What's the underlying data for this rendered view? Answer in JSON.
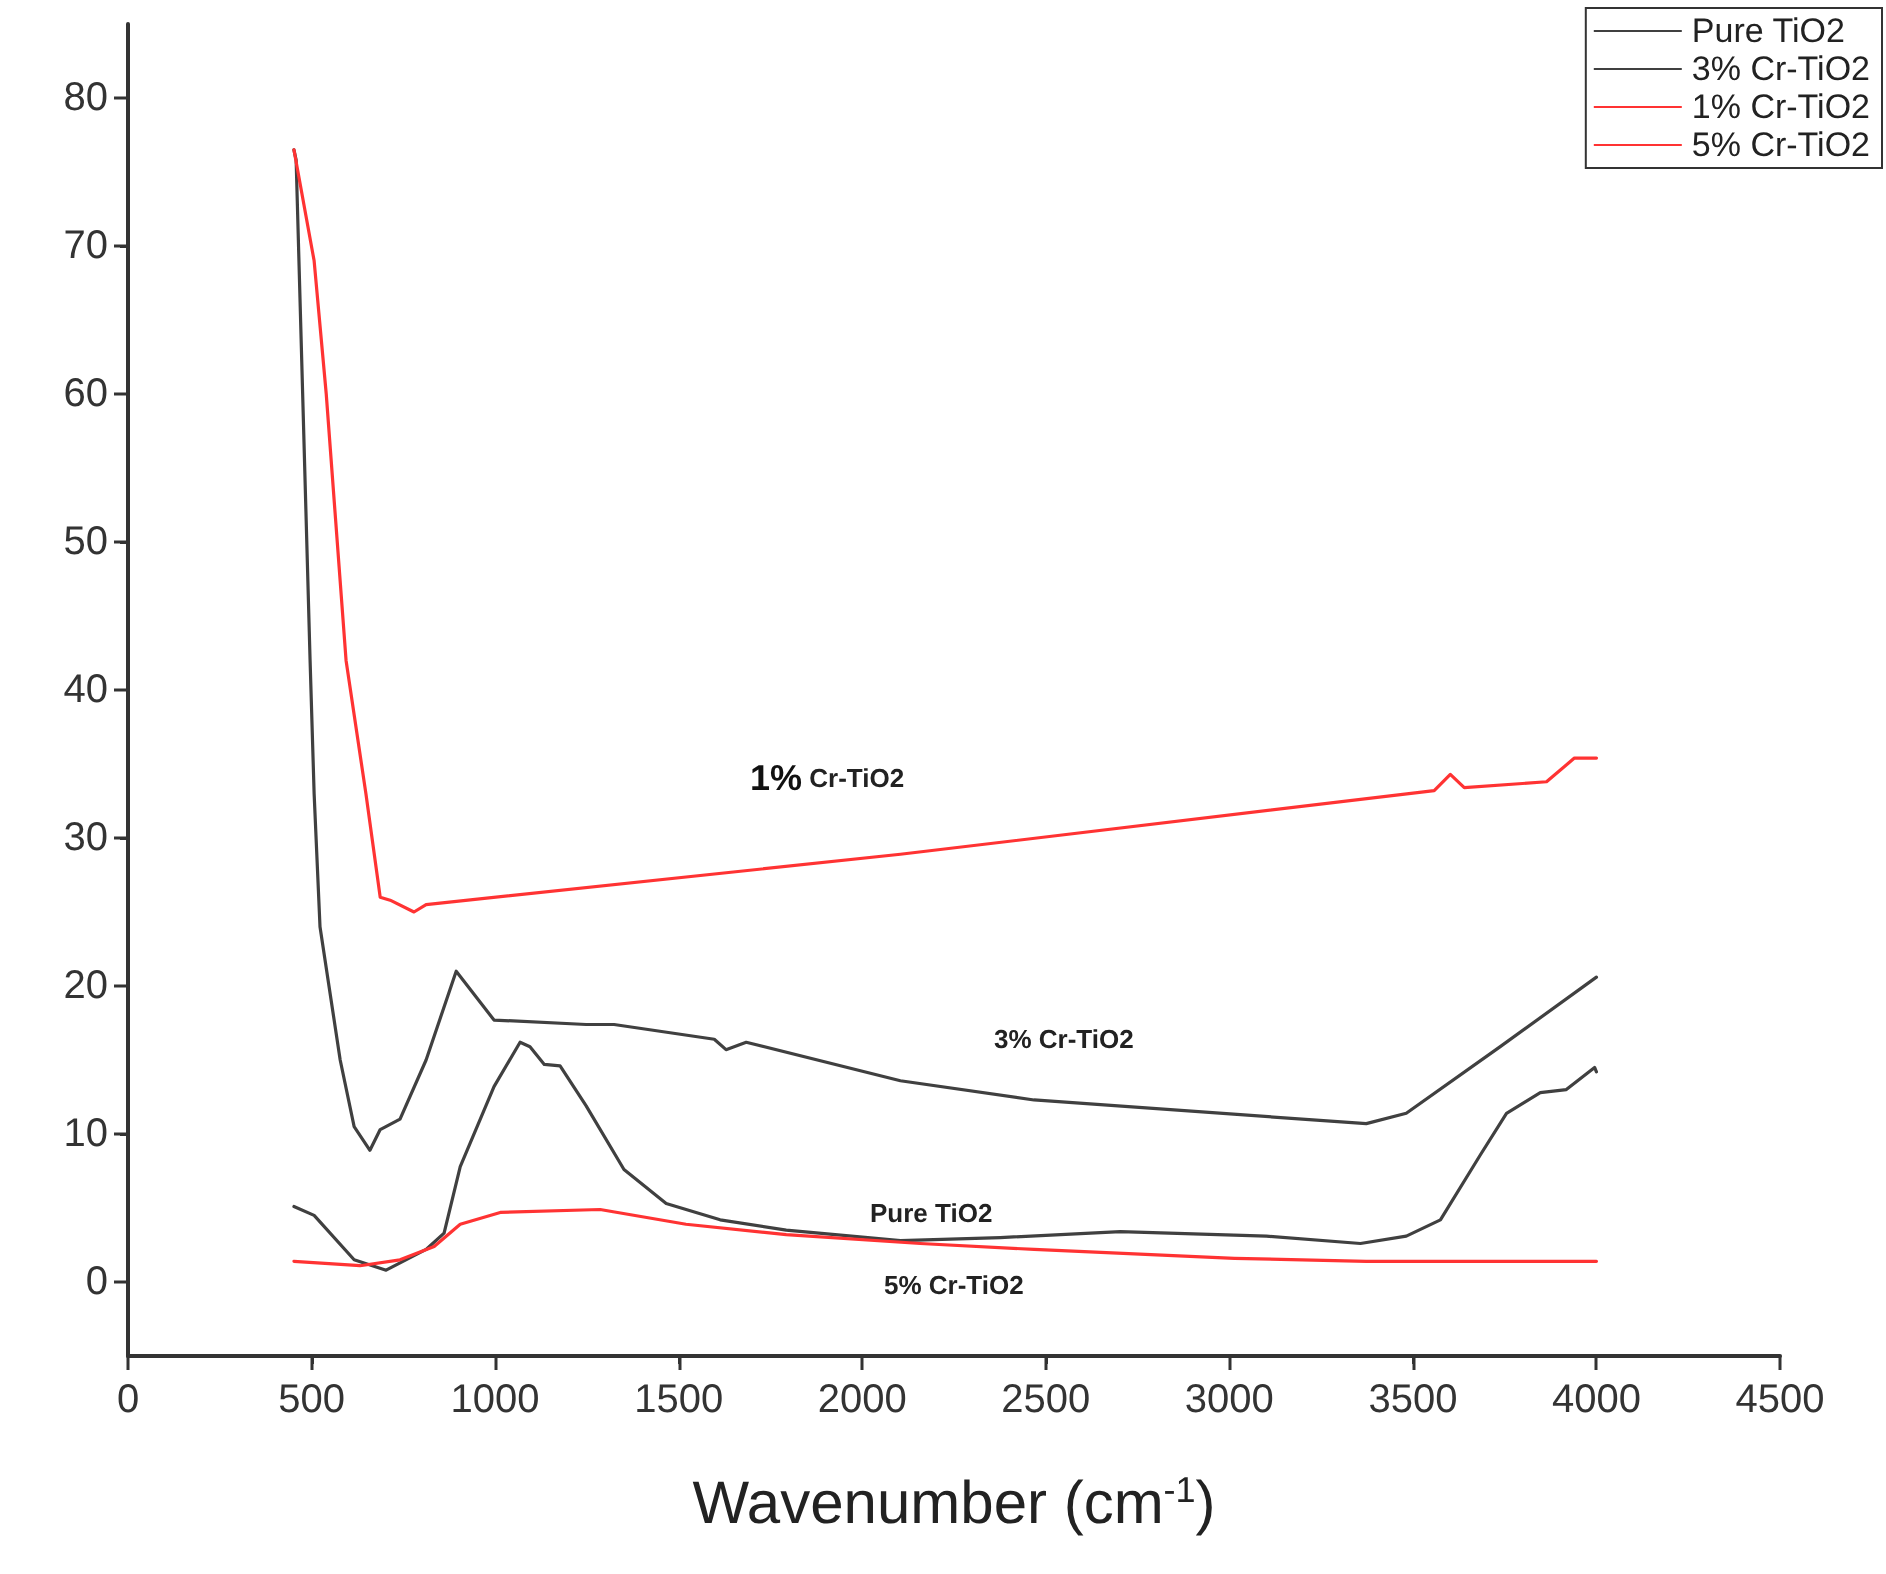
{
  "chart_data": {
    "type": "line",
    "xlabel": "Wavenumber (cm$^{-1}$)",
    "xlim": [
      0,
      4500
    ],
    "xticks": [
      0,
      500,
      1000,
      1500,
      2000,
      2500,
      3000,
      3500,
      4000,
      4500
    ],
    "ylim": [
      -5,
      85
    ],
    "yticks": [
      0,
      10,
      20,
      30,
      40,
      50,
      60,
      70,
      80
    ],
    "grid": false,
    "legend": "top right",
    "marker": "none",
    "line_style": "solid",
    "series": [
      {
        "name": "Pure TiO2",
        "color": "#404040",
        "x": [
          452,
          507,
          616,
          703,
          812,
          861,
          905,
          997,
          1068,
          1095,
          1134,
          1177,
          1248,
          1351,
          1466,
          1613,
          1793,
          2104,
          2376,
          2703,
          3101,
          3357,
          3482,
          3575,
          3684,
          3755,
          3847,
          3918,
          3995,
          4000
        ],
        "values": [
          5.1,
          4.5,
          1.5,
          0.8,
          2.2,
          3.3,
          7.8,
          13.2,
          16.2,
          15.9,
          14.7,
          14.6,
          11.9,
          7.6,
          5.3,
          4.2,
          3.5,
          2.8,
          3.0,
          3.4,
          3.1,
          2.6,
          3.1,
          4.2,
          8.6,
          11.4,
          12.8,
          13.0,
          14.5,
          14.2
        ]
      },
      {
        "name": "3% Cr-TiO2",
        "color": "#404040",
        "x": [
          452,
          458,
          496,
          507,
          523,
          578,
          616,
          659,
          687,
          741,
          812,
          894,
          997,
          1248,
          1324,
          1597,
          1629,
          1684,
          2104,
          2468,
          3373,
          3482,
          3738,
          4000
        ],
        "values": [
          76.5,
          75.8,
          42,
          33,
          24,
          15,
          10.5,
          8.9,
          10.3,
          11,
          15,
          21,
          17.7,
          17.4,
          17.4,
          16.4,
          15.7,
          16.2,
          13.6,
          12.3,
          10.7,
          11.4,
          15.9,
          20.6
        ]
      },
      {
        "name": "1% Cr-TiO2",
        "color": "#ff3333",
        "x": [
          452,
          507,
          540,
          567,
          594,
          648,
          687,
          714,
          779,
          812,
          2104,
          3558,
          3602,
          3640,
          3864,
          3940,
          4000
        ],
        "values": [
          76.5,
          69,
          60,
          51,
          42,
          33,
          26,
          25.8,
          25,
          25.5,
          28.9,
          33.2,
          34.3,
          33.4,
          33.8,
          35.4,
          35.4
        ]
      },
      {
        "name": "5% Cr-TiO2",
        "color": "#ff3333",
        "x": [
          452,
          632,
          741,
          834,
          905,
          1014,
          1286,
          1520,
          1793,
          2158,
          2468,
          3014,
          3373,
          4000
        ],
        "values": [
          1.4,
          1.1,
          1.5,
          2.4,
          3.9,
          4.7,
          4.9,
          3.9,
          3.2,
          2.6,
          2.2,
          1.6,
          1.4,
          1.4
        ]
      }
    ],
    "annotations": [
      "1% Cr-TiO2",
      "3% Cr-TiO2",
      "Pure TiO2",
      "5% Cr-TiO2"
    ]
  }
}
